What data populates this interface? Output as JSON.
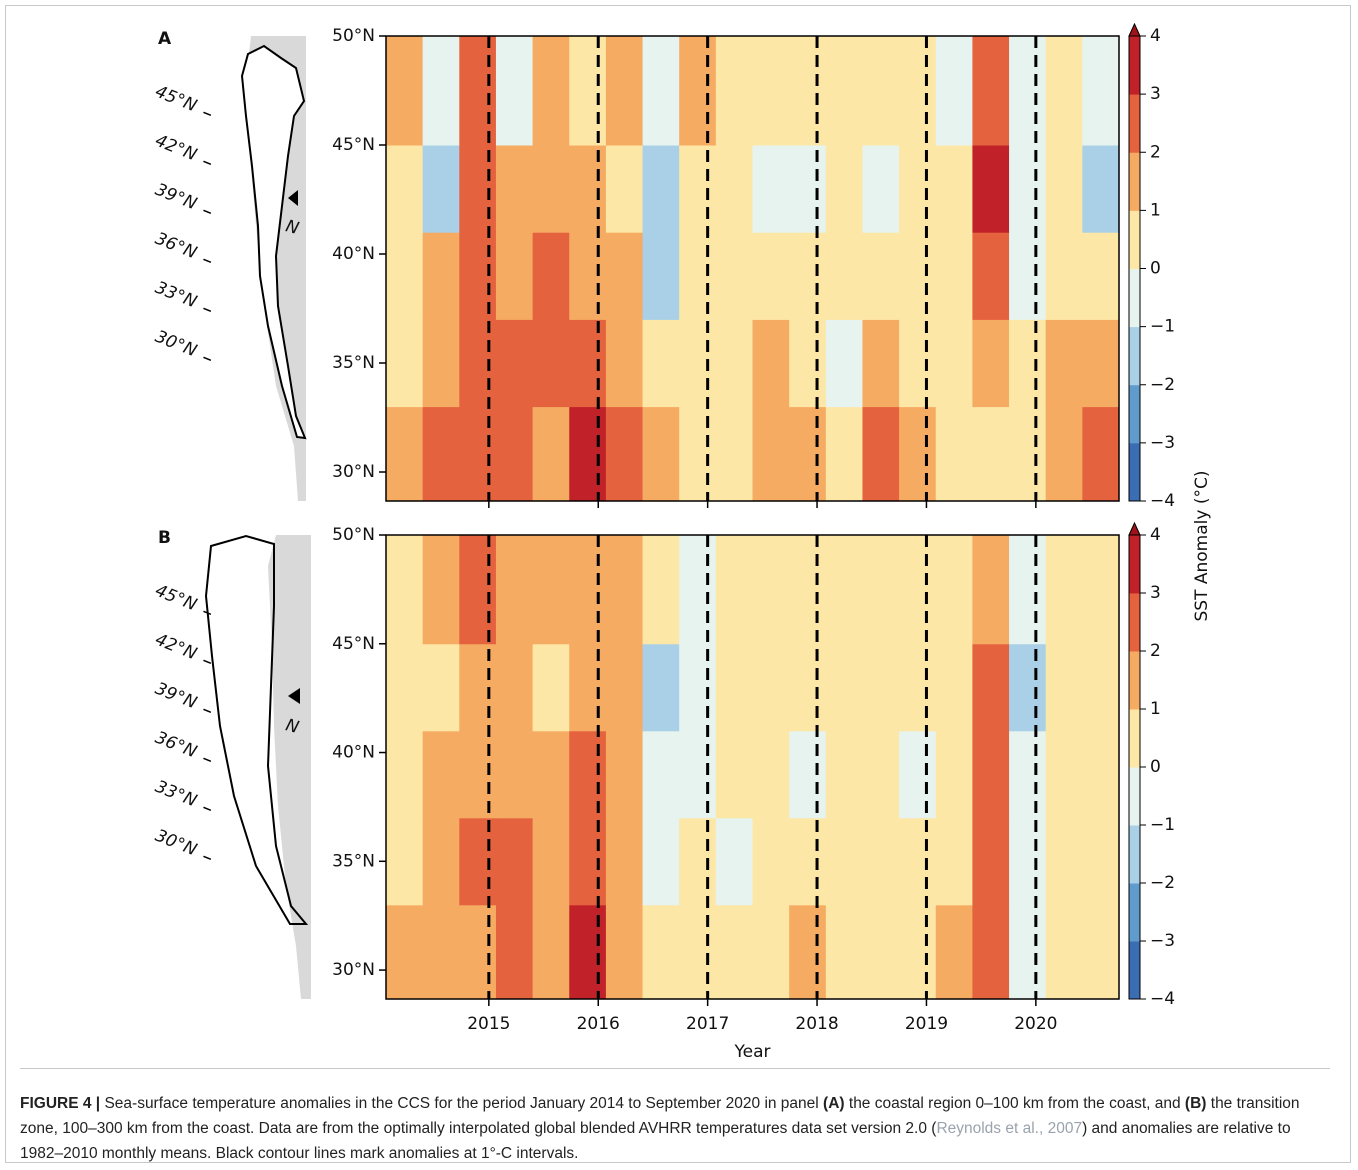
{
  "colorbar": {
    "label": "SST Anomaly (°C)",
    "levels": [
      {
        "value": -4,
        "label": "−4"
      },
      {
        "value": -3,
        "label": "−3"
      },
      {
        "value": -2,
        "label": "−2"
      },
      {
        "value": -1,
        "label": "−1"
      },
      0,
      1,
      2,
      3,
      4
    ],
    "colors": [
      "#3b6db3",
      "#5f9bcc",
      "#a9d0e6",
      "#e6f3ee",
      "#fde7a6",
      "#f6ab63",
      "#e5623f",
      "#c1222a"
    ]
  },
  "chart_data": [
    {
      "type": "heatmap",
      "panel": "A",
      "map_labels": [
        "45°N",
        "42°N",
        "39°N",
        "36°N",
        "33°N",
        "30°N"
      ],
      "map_north": "N",
      "x_bins": [
        2014.06,
        2014.395,
        2014.73,
        2015.065,
        2015.4,
        2015.735,
        2016.07,
        2016.405,
        2016.74,
        2017.075,
        2017.41,
        2017.745,
        2018.08,
        2018.415,
        2018.75,
        2019.085,
        2019.42,
        2019.755,
        2020.09,
        2020.425,
        2020.76
      ],
      "y_bins": [
        28.67,
        33,
        37,
        41,
        45,
        50
      ],
      "values": [
        [
          1.5,
          2.5,
          2.5,
          2,
          1.5,
          3.5,
          2,
          1.5,
          0.5,
          0.5,
          1.5,
          1.5,
          0.5,
          2.5,
          1,
          0.5,
          0.5,
          0.5,
          1.5,
          2.5
        ],
        [
          0.5,
          1.5,
          2.5,
          2.5,
          2.5,
          2,
          1.5,
          0.5,
          0.5,
          0.5,
          1,
          0.5,
          -0.5,
          1.5,
          0.5,
          0.5,
          1.5,
          0.5,
          1.5,
          1
        ],
        [
          0.5,
          1.5,
          2.5,
          1.5,
          2.5,
          1.5,
          1.5,
          -1.5,
          0.5,
          0.5,
          0.5,
          0.5,
          0.5,
          0.5,
          0.5,
          0.5,
          2.5,
          -0.5,
          0.5,
          0.5
        ],
        [
          0.5,
          -1.5,
          2.5,
          1.5,
          1,
          1.5,
          0.5,
          -1.5,
          0.5,
          0.5,
          -0.5,
          -0.5,
          0.5,
          -0.5,
          0.5,
          0.5,
          3.5,
          -0.5,
          0.5,
          -1.5
        ],
        [
          1.5,
          -0.5,
          2.5,
          -0.5,
          1.5,
          0.5,
          1.5,
          -0.5,
          1.5,
          0.5,
          0.5,
          0.5,
          0.5,
          0.5,
          0.5,
          -0.5,
          2.5,
          -0.5,
          0.5,
          -0.5
        ]
      ],
      "xlim": [
        2014.06,
        2020.76
      ],
      "xticks": [
        2015,
        2016,
        2017,
        2018,
        2019,
        2020
      ],
      "ylim": [
        28.67,
        50
      ],
      "yticks": [
        {
          "value": 30,
          "label": "30°N"
        },
        {
          "value": 35,
          "label": "35°N"
        },
        {
          "value": 40,
          "label": "40°N"
        },
        {
          "value": 45,
          "label": "45°N"
        },
        {
          "value": 50,
          "label": "50°N"
        }
      ]
    },
    {
      "type": "heatmap",
      "panel": "B",
      "map_labels": [
        "45°N",
        "42°N",
        "39°N",
        "36°N",
        "33°N",
        "30°N"
      ],
      "map_north": "N",
      "x_bins": [
        2014.06,
        2014.395,
        2014.73,
        2015.065,
        2015.4,
        2015.735,
        2016.07,
        2016.405,
        2016.74,
        2017.075,
        2017.41,
        2017.745,
        2018.08,
        2018.415,
        2018.75,
        2019.085,
        2019.42,
        2019.755,
        2020.09,
        2020.425,
        2020.76
      ],
      "y_bins": [
        28.67,
        33,
        37,
        41,
        45,
        50
      ],
      "values": [
        [
          1.5,
          1.5,
          1.5,
          2,
          1.5,
          3.5,
          1.5,
          0.5,
          0.5,
          0.5,
          0.5,
          1.5,
          0.5,
          0.5,
          0.5,
          1.5,
          2.5,
          -0.5,
          0.5,
          0.5
        ],
        [
          0.5,
          1.5,
          2.5,
          2.5,
          1.5,
          2.5,
          1.5,
          -0.5,
          0.5,
          -0.5,
          0.5,
          0.5,
          0.5,
          0.5,
          0.5,
          0.5,
          2.5,
          -0.5,
          0.5,
          0.5
        ],
        [
          0.5,
          1.5,
          1.5,
          1.5,
          1.5,
          2.5,
          1.5,
          -0.5,
          -0.5,
          0.5,
          0.5,
          -0.5,
          0.5,
          0.5,
          -0.5,
          0.5,
          2.5,
          -0.5,
          0.5,
          0.5
        ],
        [
          0.5,
          0.5,
          1.5,
          1.5,
          0.5,
          1.5,
          1.5,
          -1.5,
          -0.5,
          0.5,
          0.5,
          0.5,
          0.5,
          0.5,
          0.5,
          0.5,
          2.5,
          -1.5,
          0.5,
          0.5
        ],
        [
          0.5,
          1.5,
          2.5,
          1.5,
          1.5,
          1.5,
          1.5,
          0.5,
          -0.5,
          0.5,
          0.5,
          0.5,
          0.5,
          0.5,
          0.5,
          0.5,
          1.5,
          -0.5,
          0.5,
          0.5
        ]
      ],
      "xlim": [
        2014.06,
        2020.76
      ],
      "xticks": [
        2015,
        2016,
        2017,
        2018,
        2019,
        2020
      ],
      "xlabel": "Year",
      "ylim": [
        28.67,
        50
      ],
      "yticks": [
        {
          "value": 30,
          "label": "30°N"
        },
        {
          "value": 35,
          "label": "35°N"
        },
        {
          "value": 40,
          "label": "40°N"
        },
        {
          "value": 45,
          "label": "45°N"
        },
        {
          "value": 50,
          "label": "50°N"
        }
      ]
    }
  ],
  "caption": {
    "label": "FIGURE 4 |",
    "parts": [
      " Sea-surface temperature anomalies in the CCS for the period January 2014 to September 2020 in panel ",
      "(A)",
      " the coastal region 0–100 km from the coast, and ",
      "(B)",
      " the transition zone, 100–300 km from the coast. Data are from the optimally interpolated global blended AVHRR temperatures data set version 2.0 (",
      "Reynolds et al., 2007",
      ") and anomalies are relative to 1982–2010 monthly means. Black contour lines mark anomalies at 1°-C intervals."
    ]
  }
}
